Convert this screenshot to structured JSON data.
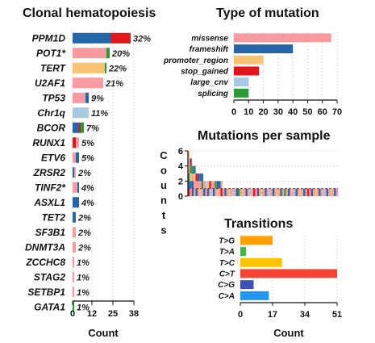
{
  "colors": {
    "missense": "#f89a9e",
    "frameshift": "#2566a8",
    "promoter_region": "#f7c274",
    "stop_gained": "#e3161c",
    "large_cnv": "#a9c9e3",
    "splicing": "#2c9b36",
    "transition_T>G": "#ff9f00",
    "transition_T>A": "#4caf50",
    "transition_T>C": "#ffc400",
    "transition_C>T": "#f44336",
    "transition_C>G": "#3f51b5",
    "transition_C>A": "#2196f3"
  },
  "chart_data": [
    {
      "type": "bar",
      "title": "Clonal hematopoiesis",
      "xlabel": "Count",
      "xlim": [
        0,
        38
      ],
      "xticks": [
        0,
        12,
        25,
        38
      ],
      "categories": [
        "PPM1D",
        "POT1*",
        "TERT",
        "U2AF1",
        "TP53",
        "Chr1q",
        "BCOR",
        "RUNX1",
        "ETV6",
        "ZRSR2",
        "TINF2*",
        "ASXL1",
        "TET2",
        "SF3B1",
        "DNMT3A",
        "ZCCHC8",
        "STAG2",
        "SETBP1",
        "GATA1"
      ],
      "percent_labels": [
        "32%",
        "20%",
        "22%",
        "21%",
        "9%",
        "11%",
        "7%",
        "5%",
        "5%",
        "2%",
        "4%",
        "4%",
        "2%",
        "2%",
        "2%",
        "1%",
        "1%",
        "1%",
        "1%"
      ],
      "stacks": [
        [
          {
            "type": "frameshift",
            "value": 24
          },
          {
            "type": "stop_gained",
            "value": 12
          }
        ],
        [
          {
            "type": "missense",
            "value": 21
          },
          {
            "type": "splicing",
            "value": 2
          }
        ],
        [
          {
            "type": "promoter_region",
            "value": 20
          },
          {
            "type": "splicing",
            "value": 1
          }
        ],
        [
          {
            "type": "missense",
            "value": 19
          }
        ],
        [
          {
            "type": "missense",
            "value": 8
          },
          {
            "type": "frameshift",
            "value": 2
          }
        ],
        [
          {
            "type": "large_cnv",
            "value": 10
          }
        ],
        [
          {
            "type": "frameshift",
            "value": 4
          },
          {
            "type": "stop_gained",
            "value": 1
          },
          {
            "type": "splicing",
            "value": 2
          }
        ],
        [
          {
            "type": "stop_gained",
            "value": 2
          },
          {
            "type": "missense",
            "value": 2
          }
        ],
        [
          {
            "type": "missense",
            "value": 2
          },
          {
            "type": "frameshift",
            "value": 2
          }
        ],
        [
          {
            "type": "frameshift",
            "value": 1
          },
          {
            "type": "missense",
            "value": 1
          }
        ],
        [
          {
            "type": "missense",
            "value": 3
          },
          {
            "type": "frameshift",
            "value": 1
          }
        ],
        [
          {
            "type": "frameshift",
            "value": 4
          }
        ],
        [
          {
            "type": "frameshift",
            "value": 2
          }
        ],
        [
          {
            "type": "missense",
            "value": 2
          }
        ],
        [
          {
            "type": "missense",
            "value": 2
          }
        ],
        [
          {
            "type": "missense",
            "value": 1
          }
        ],
        [
          {
            "type": "missense",
            "value": 1
          }
        ],
        [
          {
            "type": "missense",
            "value": 1
          }
        ],
        [
          {
            "type": "splicing",
            "value": 1
          }
        ]
      ]
    },
    {
      "type": "bar",
      "title": "Type of mutation",
      "xlim": [
        0,
        70
      ],
      "xticks": [
        0,
        10,
        20,
        30,
        40,
        50,
        60,
        70
      ],
      "categories": [
        "missense",
        "frameshift",
        "promoter_region",
        "stop_gained",
        "large_cnv",
        "splicing"
      ],
      "values": [
        66,
        40,
        20,
        17,
        10,
        10
      ]
    },
    {
      "type": "bar",
      "title": "Mutations per sample",
      "ylabel": "Counts",
      "yticks": [
        0,
        2,
        4,
        6
      ],
      "ylim": [
        0,
        6
      ],
      "reference_line": 1,
      "samples": [
        [
          {
            "type": "stop_gained",
            "value": 1
          },
          {
            "type": "frameshift",
            "value": 1
          },
          {
            "type": "splicing",
            "value": 1
          },
          {
            "type": "missense",
            "value": 1
          },
          {
            "type": "large_cnv",
            "value": 1
          },
          {
            "type": "promoter_region",
            "value": 1
          }
        ],
        [
          {
            "type": "missense",
            "value": 1
          },
          {
            "type": "frameshift",
            "value": 1
          },
          {
            "type": "promoter_region",
            "value": 1
          },
          {
            "type": "splicing",
            "value": 1
          },
          {
            "type": "stop_gained",
            "value": 1
          }
        ],
        [
          {
            "type": "frameshift",
            "value": 2
          },
          {
            "type": "missense",
            "value": 1
          },
          {
            "type": "splicing",
            "value": 1
          }
        ],
        [
          {
            "type": "missense",
            "value": 2
          },
          {
            "type": "promoter_region",
            "value": 1
          },
          {
            "type": "frameshift",
            "value": 1
          }
        ],
        [
          {
            "type": "frameshift",
            "value": 1
          },
          {
            "type": "missense",
            "value": 1
          },
          {
            "type": "stop_gained",
            "value": 1
          }
        ],
        [
          {
            "type": "missense",
            "value": 2
          },
          {
            "type": "frameshift",
            "value": 1
          }
        ],
        [
          {
            "type": "promoter_region",
            "value": 1
          },
          {
            "type": "missense",
            "value": 1
          },
          {
            "type": "frameshift",
            "value": 1
          }
        ],
        [
          {
            "type": "missense",
            "value": 1
          },
          {
            "type": "splicing",
            "value": 1
          },
          {
            "type": "frameshift",
            "value": 1
          }
        ],
        [
          {
            "type": "frameshift",
            "value": 1
          },
          {
            "type": "missense",
            "value": 1
          }
        ],
        [
          {
            "type": "missense",
            "value": 1
          },
          {
            "type": "large_cnv",
            "value": 1
          }
        ],
        [
          {
            "type": "frameshift",
            "value": 1
          },
          {
            "type": "promoter_region",
            "value": 1
          }
        ],
        [
          {
            "type": "missense",
            "value": 1
          },
          {
            "type": "stop_gained",
            "value": 1
          }
        ],
        [
          {
            "type": "large_cnv",
            "value": 1
          },
          {
            "type": "missense",
            "value": 1
          }
        ],
        [
          {
            "type": "frameshift",
            "value": 1
          },
          {
            "type": "missense",
            "value": 1
          }
        ],
        [
          {
            "type": "missense",
            "value": 1
          },
          {
            "type": "splicing",
            "value": 1
          }
        ],
        [
          {
            "type": "promoter_region",
            "value": 1
          },
          {
            "type": "frameshift",
            "value": 1
          }
        ],
        [
          {
            "type": "missense",
            "value": 1
          },
          {
            "type": "frameshift",
            "value": 1
          }
        ],
        [
          {
            "type": "stop_gained",
            "value": 1
          },
          {
            "type": "missense",
            "value": 1
          }
        ],
        [
          {
            "type": "missense",
            "value": 1
          }
        ],
        [
          {
            "type": "frameshift",
            "value": 1
          }
        ],
        [
          {
            "type": "missense",
            "value": 1
          }
        ],
        [
          {
            "type": "promoter_region",
            "value": 1
          }
        ],
        [
          {
            "type": "missense",
            "value": 1
          }
        ],
        [
          {
            "type": "large_cnv",
            "value": 1
          }
        ],
        [
          {
            "type": "missense",
            "value": 1
          }
        ],
        [
          {
            "type": "frameshift",
            "value": 1
          }
        ],
        [
          {
            "type": "splicing",
            "value": 1
          }
        ],
        [
          {
            "type": "missense",
            "value": 1
          }
        ],
        [
          {
            "type": "promoter_region",
            "value": 1
          }
        ],
        [
          {
            "type": "missense",
            "value": 1
          }
        ],
        [
          {
            "type": "frameshift",
            "value": 1
          }
        ],
        [
          {
            "type": "missense",
            "value": 1
          }
        ],
        [
          {
            "type": "large_cnv",
            "value": 1
          }
        ],
        [
          {
            "type": "missense",
            "value": 1
          }
        ],
        [
          {
            "type": "stop_gained",
            "value": 1
          }
        ],
        [
          {
            "type": "missense",
            "value": 1
          }
        ],
        [
          {
            "type": "frameshift",
            "value": 1
          }
        ],
        [
          {
            "type": "missense",
            "value": 1
          }
        ],
        [
          {
            "type": "promoter_region",
            "value": 1
          }
        ],
        [
          {
            "type": "missense",
            "value": 1
          }
        ],
        [
          {
            "type": "frameshift",
            "value": 1
          }
        ],
        [
          {
            "type": "missense",
            "value": 1
          }
        ],
        [
          {
            "type": "large_cnv",
            "value": 1
          }
        ],
        [
          {
            "type": "missense",
            "value": 1
          }
        ],
        [
          {
            "type": "frameshift",
            "value": 1
          }
        ],
        [
          {
            "type": "missense",
            "value": 1
          }
        ],
        [
          {
            "type": "promoter_region",
            "value": 1
          }
        ],
        [
          {
            "type": "missense",
            "value": 1
          }
        ],
        [
          {
            "type": "frameshift",
            "value": 1
          }
        ],
        [
          {
            "type": "missense",
            "value": 1
          }
        ],
        [
          {
            "type": "splicing",
            "value": 1
          }
        ],
        [
          {
            "type": "missense",
            "value": 1
          }
        ],
        [
          {
            "type": "frameshift",
            "value": 1
          }
        ],
        [
          {
            "type": "missense",
            "value": 1
          }
        ],
        [
          {
            "type": "large_cnv",
            "value": 1
          }
        ],
        [
          {
            "type": "missense",
            "value": 1
          }
        ],
        [
          {
            "type": "frameshift",
            "value": 1
          }
        ],
        [
          {
            "type": "missense",
            "value": 1
          }
        ],
        [
          {
            "type": "promoter_region",
            "value": 1
          }
        ],
        [
          {
            "type": "missense",
            "value": 1
          }
        ],
        [
          {
            "type": "frameshift",
            "value": 1
          }
        ],
        [
          {
            "type": "missense",
            "value": 1
          }
        ],
        [
          {
            "type": "stop_gained",
            "value": 1
          }
        ],
        [
          {
            "type": "missense",
            "value": 1
          }
        ],
        [
          {
            "type": "frameshift",
            "value": 1
          }
        ],
        [
          {
            "type": "missense",
            "value": 1
          }
        ],
        [
          {
            "type": "promoter_region",
            "value": 1
          }
        ],
        [
          {
            "type": "missense",
            "value": 1
          }
        ],
        [
          {
            "type": "frameshift",
            "value": 1
          }
        ],
        [
          {
            "type": "missense",
            "value": 1
          }
        ],
        [
          {
            "type": "large_cnv",
            "value": 1
          }
        ],
        [
          {
            "type": "missense",
            "value": 1
          }
        ],
        [
          {
            "type": "frameshift",
            "value": 1
          }
        ],
        [
          {
            "type": "missense",
            "value": 1
          }
        ],
        [
          {
            "type": "promoter_region",
            "value": 1
          }
        ],
        [
          {
            "type": "missense",
            "value": 1
          }
        ],
        [
          {
            "type": "frameshift",
            "value": 1
          }
        ],
        [
          {
            "type": "missense",
            "value": 1
          }
        ]
      ]
    },
    {
      "type": "bar",
      "title": "Transitions",
      "xlabel": "Count",
      "xlim": [
        0,
        51
      ],
      "xticks": [
        0,
        17,
        34,
        51
      ],
      "categories": [
        "T>G",
        "T>A",
        "T>C",
        "C>T",
        "C>G",
        "C>A"
      ],
      "values": [
        17,
        3,
        22,
        51,
        7,
        15
      ]
    }
  ]
}
